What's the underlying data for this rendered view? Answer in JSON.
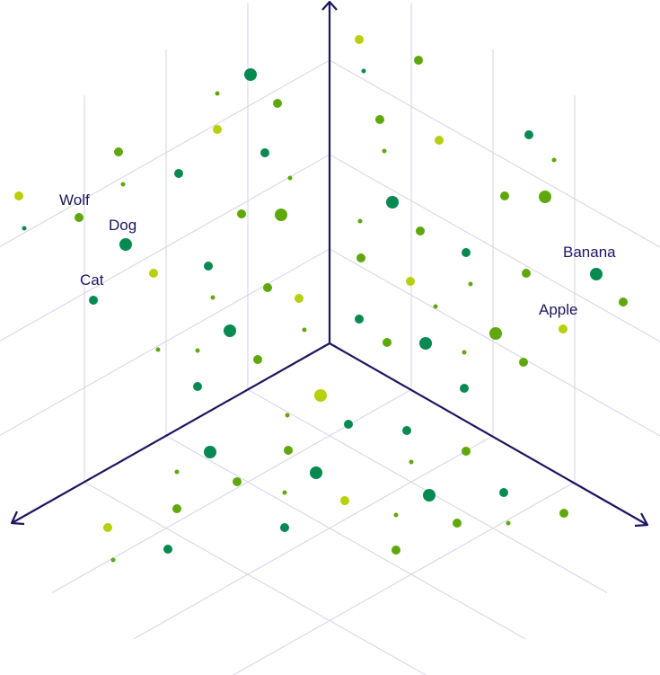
{
  "colors": {
    "axis": "#1c1660",
    "grid": "#d4d2e6",
    "label": "#1c1660",
    "lime": "#b8cf0c",
    "green": "#5fa80c",
    "dark_green": "#078a52"
  },
  "labels": {
    "wolf": "Wolf",
    "dog": "Dog",
    "cat": "Cat",
    "banana": "Banana",
    "apple": "Apple"
  }
}
